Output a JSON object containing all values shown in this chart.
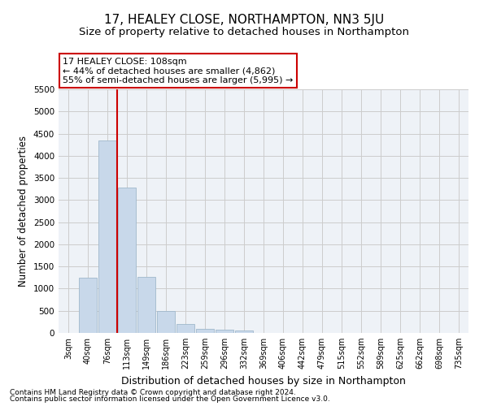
{
  "title": "17, HEALEY CLOSE, NORTHAMPTON, NN3 5JU",
  "subtitle": "Size of property relative to detached houses in Northampton",
  "xlabel": "Distribution of detached houses by size in Northampton",
  "ylabel": "Number of detached properties",
  "footnote1": "Contains HM Land Registry data © Crown copyright and database right 2024.",
  "footnote2": "Contains public sector information licensed under the Open Government Licence v3.0.",
  "annotation_title": "17 HEALEY CLOSE: 108sqm",
  "annotation_line1": "← 44% of detached houses are smaller (4,862)",
  "annotation_line2": "55% of semi-detached houses are larger (5,995) →",
  "bar_categories": [
    "3sqm",
    "40sqm",
    "76sqm",
    "113sqm",
    "149sqm",
    "186sqm",
    "223sqm",
    "259sqm",
    "296sqm",
    "332sqm",
    "369sqm",
    "406sqm",
    "442sqm",
    "479sqm",
    "515sqm",
    "552sqm",
    "589sqm",
    "625sqm",
    "662sqm",
    "698sqm",
    "735sqm"
  ],
  "bar_values": [
    0,
    1250,
    4350,
    3280,
    1270,
    490,
    200,
    100,
    75,
    50,
    0,
    0,
    0,
    0,
    0,
    0,
    0,
    0,
    0,
    0,
    0
  ],
  "bar_color": "#c8d8ea",
  "bar_edgecolor": "#a0b8cc",
  "vline_color": "#cc0000",
  "vline_x_index": 2.5,
  "ylim": [
    0,
    5500
  ],
  "yticks": [
    0,
    500,
    1000,
    1500,
    2000,
    2500,
    3000,
    3500,
    4000,
    4500,
    5000,
    5500
  ],
  "grid_color": "#cccccc",
  "bg_color": "#eef2f7",
  "title_fontsize": 11,
  "subtitle_fontsize": 9.5,
  "xlabel_fontsize": 9,
  "ylabel_fontsize": 8.5
}
